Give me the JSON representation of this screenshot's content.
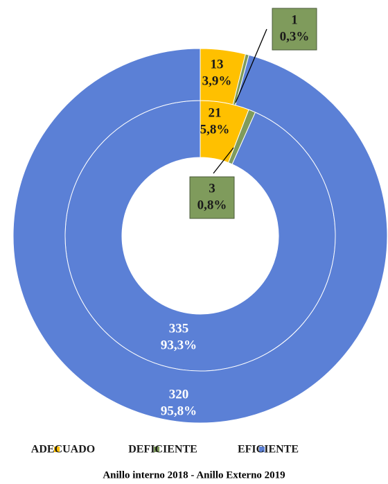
{
  "chart_data": {
    "type": "donut",
    "title": "Anillo interno 2018 - Anillo Externo 2019",
    "categories": [
      "ADECUADO",
      "DEFICIENTE",
      "EFICIENTE"
    ],
    "colors": [
      "#ffc000",
      "#7f9b5c",
      "#5b80d6"
    ],
    "series": [
      {
        "values": [
          21,
          3,
          335
        ],
        "percent_labels": [
          "5,8%",
          "0,8%",
          "93,3%"
        ]
      },
      {
        "values": [
          13,
          1,
          320
        ],
        "percent_labels": [
          "3,9%",
          "0,3%",
          "95,8%"
        ]
      }
    ],
    "legend": "bottom"
  }
}
